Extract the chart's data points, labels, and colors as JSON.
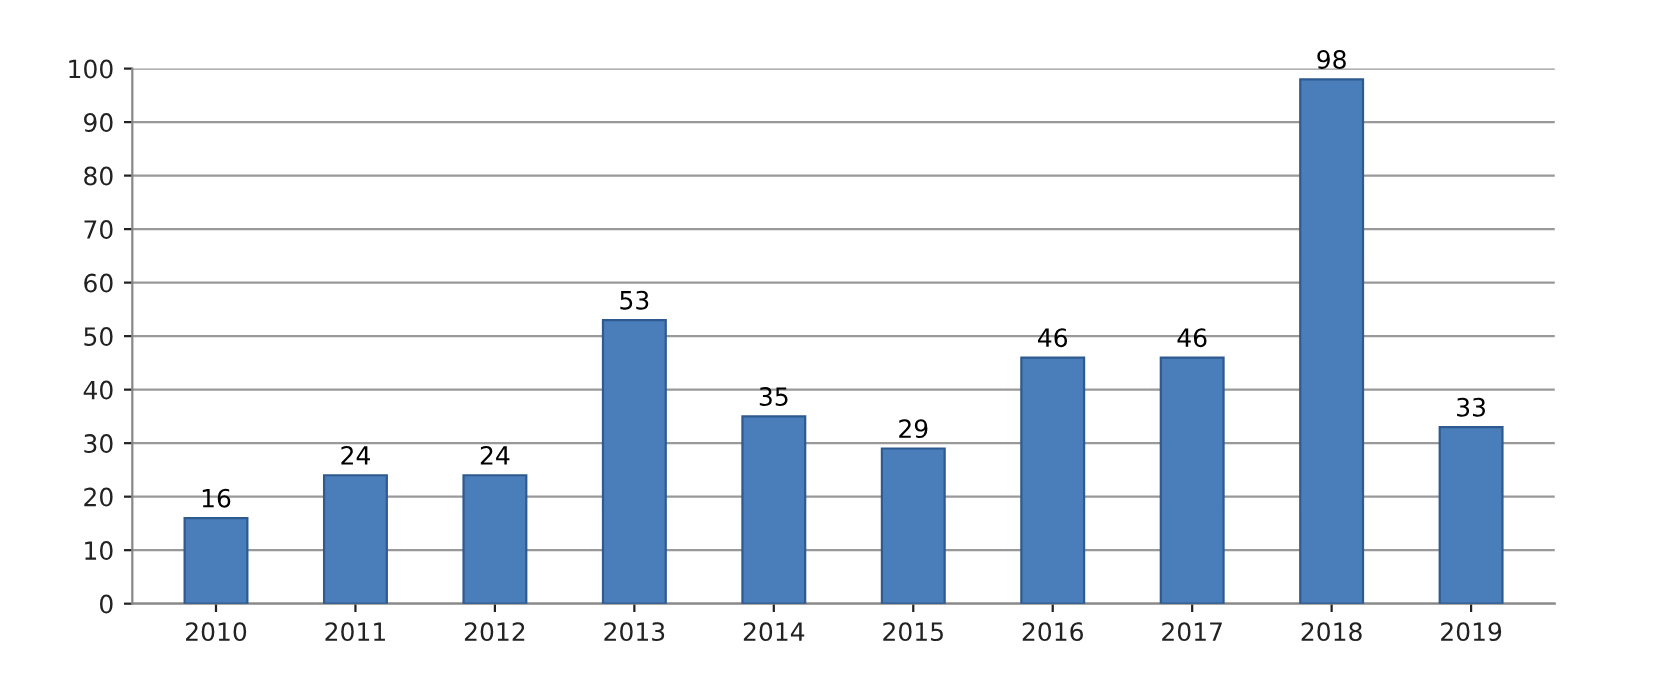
{
  "chart_data": {
    "type": "bar",
    "categories": [
      "2010",
      "2011",
      "2012",
      "2013",
      "2014",
      "2015",
      "2016",
      "2017",
      "2018",
      "2019"
    ],
    "values": [
      16,
      24,
      24,
      53,
      35,
      29,
      46,
      46,
      98,
      33
    ],
    "color": "#4a7ebb",
    "ylim": [
      0,
      100
    ],
    "yticks": [
      0,
      10,
      20,
      30,
      40,
      50,
      60,
      70,
      80,
      90,
      100
    ],
    "grid": "y",
    "data_labels": true
  }
}
